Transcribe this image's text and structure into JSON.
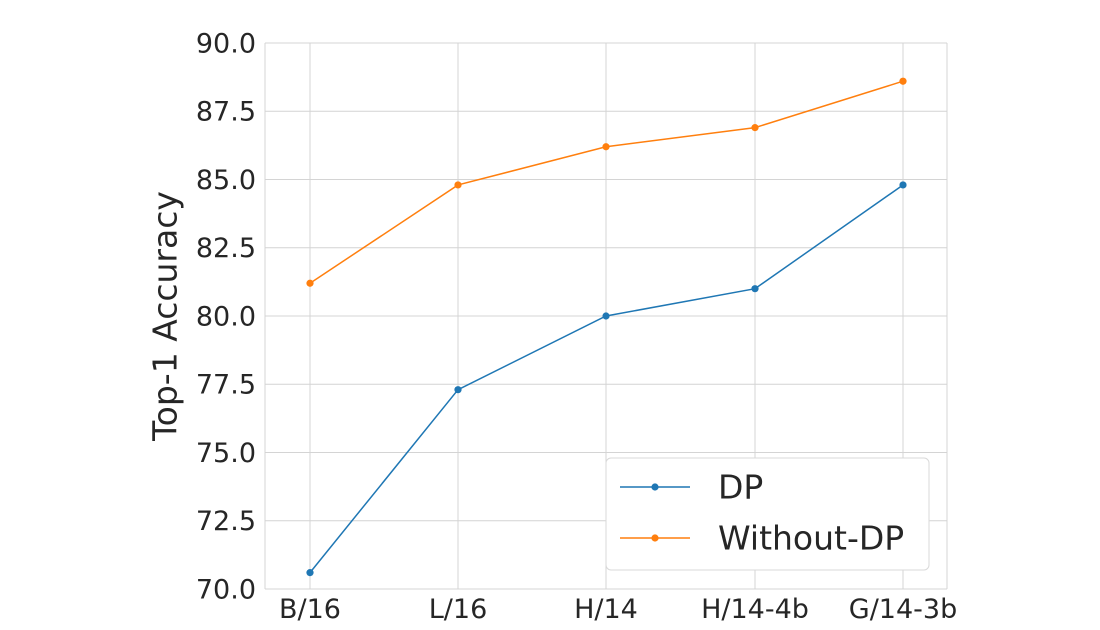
{
  "chart_data": {
    "type": "line",
    "categories": [
      "B/16",
      "L/16",
      "H/14",
      "H/14-4b",
      "G/14-3b"
    ],
    "series": [
      {
        "name": "DP",
        "color": "#1f77b4",
        "values": [
          70.6,
          77.3,
          80.0,
          81.0,
          84.8
        ]
      },
      {
        "name": "Without-DP",
        "color": "#ff7f0e",
        "values": [
          81.2,
          84.8,
          86.2,
          86.9,
          88.6
        ]
      }
    ],
    "title": "",
    "xlabel": "",
    "ylabel": "Top-1 Accuracy",
    "ylim": [
      70.0,
      90.0
    ],
    "yticks": [
      "70.0",
      "72.5",
      "75.0",
      "77.5",
      "80.0",
      "82.5",
      "85.0",
      "87.5",
      "90.0"
    ],
    "grid": true,
    "legend_position": "bottom-right",
    "markers": true
  }
}
